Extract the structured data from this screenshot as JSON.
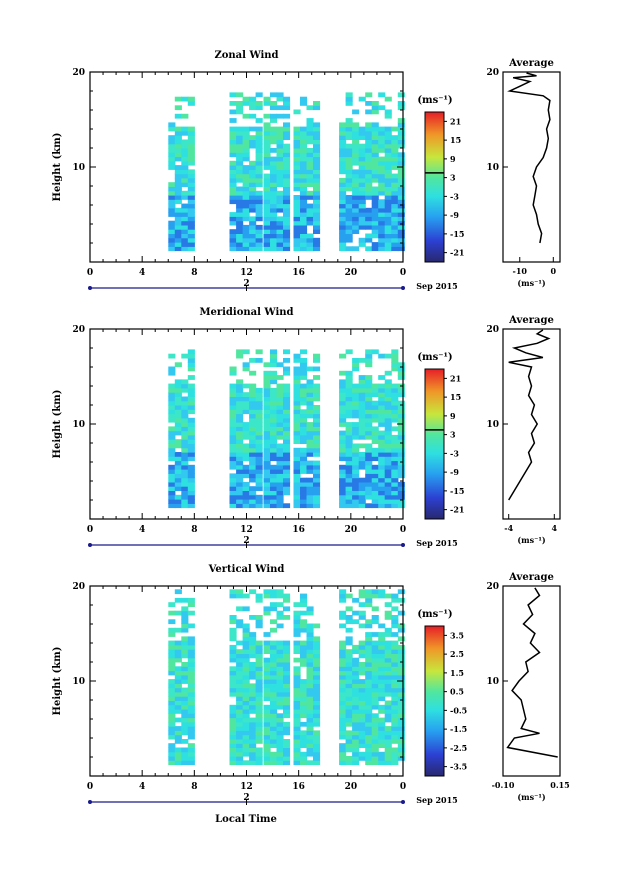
{
  "xlabel": "Local Time",
  "colorbar_unit": "(ms⁻¹)",
  "chart_data": [
    {
      "type": "heatmap",
      "title": "Zonal Wind",
      "ylabel": "Height (km)",
      "xticks": [
        "0",
        "4",
        "8",
        "12",
        "16",
        "20",
        "0"
      ],
      "yticks": [
        "10",
        "20"
      ],
      "date_tick": "2",
      "date_label": "Sep 2015",
      "colorbar_ticks": [
        "21",
        "15",
        "9",
        "3",
        "-3",
        "-9",
        "-15",
        "-21"
      ],
      "colorbar_range": [
        -24,
        24
      ],
      "avg_title": "Average",
      "avg_xticks": [
        "-10",
        "0"
      ],
      "avg_xunit": "(ms⁻¹)",
      "avg_xrange": [
        -15,
        2
      ],
      "avg_yticks": [
        "10",
        "20"
      ],
      "avg_profile": [
        [
          -4,
          2
        ],
        [
          -3.5,
          3
        ],
        [
          -4.5,
          4
        ],
        [
          -5,
          5
        ],
        [
          -6,
          6
        ],
        [
          -5.5,
          7
        ],
        [
          -5,
          8
        ],
        [
          -6,
          9
        ],
        [
          -5,
          10
        ],
        [
          -3,
          11
        ],
        [
          -2,
          12
        ],
        [
          -1.5,
          13
        ],
        [
          -2,
          14
        ],
        [
          -1,
          15
        ],
        [
          -1.5,
          16
        ],
        [
          -1,
          17
        ],
        [
          -3,
          17.5
        ],
        [
          -13,
          18
        ],
        [
          -10,
          18.5
        ],
        [
          -7,
          19
        ],
        [
          -12,
          19.4
        ],
        [
          -5,
          19.6
        ],
        [
          -8,
          19.9
        ]
      ]
    },
    {
      "type": "heatmap",
      "title": "Meridional Wind",
      "ylabel": "Height (km)",
      "xticks": [
        "0",
        "4",
        "8",
        "12",
        "16",
        "20",
        "0"
      ],
      "yticks": [
        "10",
        "20"
      ],
      "date_tick": "2",
      "date_label": "Sep 2015",
      "colorbar_ticks": [
        "21",
        "15",
        "9",
        "3",
        "-3",
        "-9",
        "-15",
        "-21"
      ],
      "colorbar_range": [
        -24,
        24
      ],
      "avg_title": "Average",
      "avg_xticks": [
        "-4",
        "4"
      ],
      "avg_xunit": "(ms⁻¹)",
      "avg_xrange": [
        -5,
        5
      ],
      "avg_yticks": [
        "10",
        "20"
      ],
      "avg_profile": [
        [
          -4,
          2
        ],
        [
          -3,
          3
        ],
        [
          -2,
          4
        ],
        [
          -1,
          5
        ],
        [
          0,
          6
        ],
        [
          -0.5,
          7
        ],
        [
          0.5,
          8
        ],
        [
          0,
          9
        ],
        [
          1,
          10
        ],
        [
          0,
          11
        ],
        [
          0.5,
          12
        ],
        [
          -0.5,
          13
        ],
        [
          0,
          14
        ],
        [
          -0.5,
          15
        ],
        [
          0,
          16
        ],
        [
          -4,
          16.5
        ],
        [
          2,
          17
        ],
        [
          -1,
          17.5
        ],
        [
          -3,
          18
        ],
        [
          1,
          18.5
        ],
        [
          3,
          19
        ],
        [
          1,
          19.5
        ],
        [
          2,
          19.9
        ]
      ]
    },
    {
      "type": "heatmap",
      "title": "Vertical Wind",
      "ylabel": "Height (km)",
      "xticks": [
        "0",
        "4",
        "8",
        "12",
        "16",
        "20",
        "0"
      ],
      "yticks": [
        "10",
        "20"
      ],
      "date_tick": "2",
      "date_label": "Sep 2015",
      "colorbar_ticks": [
        "3.5",
        "2.5",
        "1.5",
        "0.5",
        "-0.5",
        "-1.5",
        "-2.5",
        "-3.5"
      ],
      "colorbar_range": [
        -4,
        4
      ],
      "avg_title": "Average",
      "avg_xticks": [
        "-0.10",
        "0.15"
      ],
      "avg_xunit": "(ms⁻¹)",
      "avg_xrange": [
        -0.1,
        0.15
      ],
      "avg_yticks": [
        "10",
        "20"
      ],
      "avg_profile": [
        [
          0.14,
          2
        ],
        [
          -0.08,
          3
        ],
        [
          -0.05,
          4
        ],
        [
          0.06,
          4.5
        ],
        [
          -0.02,
          5
        ],
        [
          0.0,
          6
        ],
        [
          -0.01,
          7
        ],
        [
          -0.02,
          8
        ],
        [
          -0.06,
          9
        ],
        [
          -0.03,
          10
        ],
        [
          0.01,
          11
        ],
        [
          0.0,
          12
        ],
        [
          0.06,
          13
        ],
        [
          0.02,
          14
        ],
        [
          0.04,
          15
        ],
        [
          -0.01,
          16
        ],
        [
          0.03,
          17
        ],
        [
          0.01,
          18
        ],
        [
          0.06,
          19
        ],
        [
          0.04,
          19.8
        ]
      ]
    }
  ]
}
